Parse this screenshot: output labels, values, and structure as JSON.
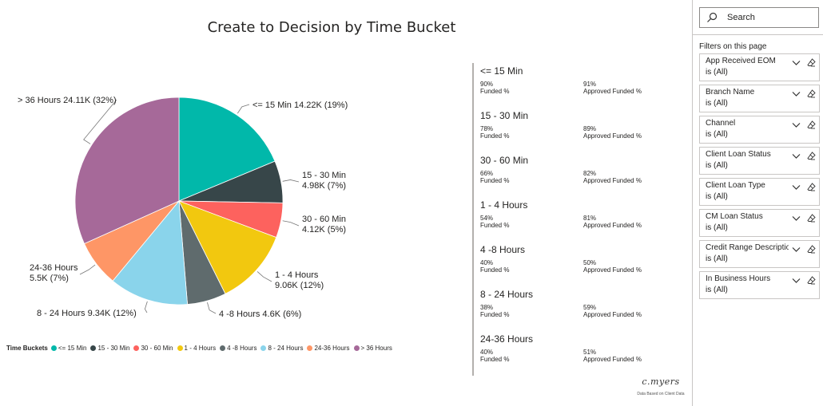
{
  "report": {
    "title": "Create to Decision by Time Bucket"
  },
  "chart_data": {
    "type": "pie",
    "title": "Create to Decision by Time Bucket",
    "legend_title": "Time Buckets",
    "legend_position": "bottom-left",
    "slices": [
      {
        "name": "<= 15 Min",
        "value": 14.22,
        "label_value": "14.22K",
        "pct": "19%",
        "color": "#01B8AA"
      },
      {
        "name": "15 - 30 Min",
        "value": 4.98,
        "label_value": "4.98K",
        "pct": "7%",
        "color": "#374649"
      },
      {
        "name": "30 - 60 Min",
        "value": 4.12,
        "label_value": "4.12K",
        "pct": "5%",
        "color": "#FD625E"
      },
      {
        "name": "1 - 4 Hours",
        "value": 9.06,
        "label_value": "9.06K",
        "pct": "12%",
        "color": "#F2C80F"
      },
      {
        "name": "4 -8 Hours",
        "value": 4.6,
        "label_value": "4.6K",
        "pct": "6%",
        "color": "#5F6B6D"
      },
      {
        "name": "8 - 24 Hours",
        "value": 9.34,
        "label_value": "9.34K",
        "pct": "12%",
        "color": "#8AD4EB"
      },
      {
        "name": "24-36 Hours",
        "value": 5.5,
        "label_value": "5.5K",
        "pct": "7%",
        "color": "#FE9666"
      },
      {
        "name": "> 36 Hours",
        "value": 24.11,
        "label_value": "24.11K",
        "pct": "32%",
        "color": "#A66999"
      }
    ],
    "labels": [
      {
        "line1": "<= 15 Min 14.22K (19%)",
        "line2": ""
      },
      {
        "line1": "15 - 30 Min",
        "line2": "4.98K (7%)"
      },
      {
        "line1": "30 - 60 Min",
        "line2": "4.12K (5%)"
      },
      {
        "line1": "1 - 4 Hours",
        "line2": "9.06K (12%)"
      },
      {
        "line1": "4 -8 Hours 4.6K (6%)",
        "line2": ""
      },
      {
        "line1": "8 - 24 Hours 9.34K (12%)",
        "line2": ""
      },
      {
        "line1": "24-36 Hours",
        "line2": "5.5K (7%)"
      },
      {
        "line1": "> 36 Hours 24.11K (32%)",
        "line2": ""
      }
    ]
  },
  "cards": [
    {
      "title": "<= 15 Min",
      "funded_pct": "90%",
      "funded_label": "Funded %",
      "approved_pct": "91%",
      "approved_label": "Approved Funded %"
    },
    {
      "title": "15 - 30 Min",
      "funded_pct": "78%",
      "funded_label": "Funded %",
      "approved_pct": "89%",
      "approved_label": "Approved Funded %"
    },
    {
      "title": "30 - 60 Min",
      "funded_pct": "66%",
      "funded_label": "Funded %",
      "approved_pct": "82%",
      "approved_label": "Approved Funded %"
    },
    {
      "title": "1 - 4 Hours",
      "funded_pct": "54%",
      "funded_label": "Funded %",
      "approved_pct": "81%",
      "approved_label": "Approved Funded %"
    },
    {
      "title": "4 -8 Hours",
      "funded_pct": "40%",
      "funded_label": "Funded %",
      "approved_pct": "50%",
      "approved_label": "Approved Funded %"
    },
    {
      "title": "8 - 24 Hours",
      "funded_pct": "38%",
      "funded_label": "Funded %",
      "approved_pct": "59%",
      "approved_label": "Approved Funded %"
    },
    {
      "title": "24-36 Hours",
      "funded_pct": "40%",
      "funded_label": "Funded %",
      "approved_pct": "51%",
      "approved_label": "Approved Funded %"
    }
  ],
  "credit": {
    "signature": "c.myers",
    "note": "Data Based on Client Data"
  },
  "filter_pane": {
    "search_placeholder": "Search",
    "heading": "Filters on this page",
    "filters": [
      {
        "name": "App Received EOM",
        "state": "is (All)"
      },
      {
        "name": "Branch Name",
        "state": "is (All)"
      },
      {
        "name": "Channel",
        "state": "is (All)"
      },
      {
        "name": "Client Loan Status",
        "state": "is (All)"
      },
      {
        "name": "Client Loan Type",
        "state": "is (All)"
      },
      {
        "name": "CM Loan Status",
        "state": "is (All)"
      },
      {
        "name": "Credit Range Description",
        "state": "is (All)"
      },
      {
        "name": "In Business Hours",
        "state": "is (All)"
      }
    ]
  },
  "icons": {
    "search": "search-icon",
    "expand": "chevron-down-icon",
    "clear": "eraser-icon"
  }
}
